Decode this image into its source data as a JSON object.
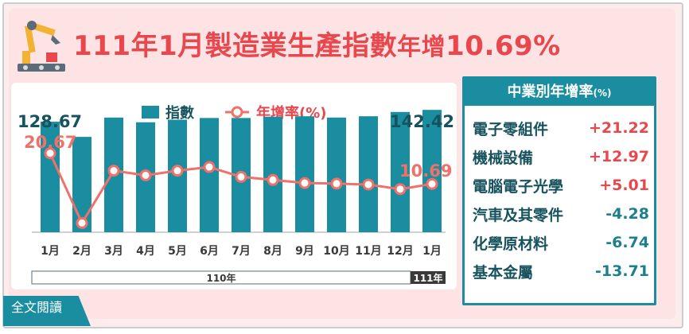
{
  "title": {
    "year_part": "111年1月製造業生產指數",
    "suffix_small": "年增",
    "suffix_value": "10.69%"
  },
  "legend": {
    "index_label": "指數",
    "yoy_label": "年增率(%)"
  },
  "colors": {
    "bar": "#1a8ea0",
    "line": "#f0706a",
    "title": "#e8474d"
  },
  "chart_data": {
    "type": "bar",
    "categories": [
      "1月",
      "2月",
      "3月",
      "4月",
      "5月",
      "6月",
      "7月",
      "8月",
      "9月",
      "10月",
      "11月",
      "12月",
      "1月"
    ],
    "year_groups": [
      {
        "label": "110年",
        "start": 0,
        "end": 11
      },
      {
        "label": "111年",
        "start": 12,
        "end": 12
      }
    ],
    "series": [
      {
        "name": "指數",
        "type": "bar",
        "values": [
          128.67,
          111.0,
          133.5,
          128.0,
          131.0,
          133.0,
          133.0,
          134.5,
          135.0,
          133.5,
          135.0,
          140.0,
          142.42
        ]
      },
      {
        "name": "年增率(%)",
        "type": "line",
        "values": [
          20.67,
          -2.0,
          15.0,
          13.5,
          15.0,
          16.2,
          13.0,
          12.0,
          11.0,
          10.8,
          10.5,
          9.0,
          10.69
        ]
      }
    ],
    "labels": {
      "bar_first": "128.67",
      "bar_last": "142.42",
      "line_first": "20.67",
      "line_last": "10.69"
    },
    "bar_range": [
      0,
      150
    ],
    "line_range": [
      -5,
      40
    ]
  },
  "industry": {
    "title": "中業別年增率",
    "unit": "(%)",
    "rows": [
      {
        "name": "電子零組件",
        "value": "+21.22"
      },
      {
        "name": "機械設備",
        "value": "+12.97"
      },
      {
        "name": "電腦電子光學",
        "value": "+5.01"
      },
      {
        "name": "汽車及其零件",
        "value": "-4.28"
      },
      {
        "name": "化學原材料",
        "value": "-6.74"
      },
      {
        "name": "基本金屬",
        "value": "-13.71"
      }
    ]
  },
  "footer": {
    "read_more": "全文閱讀"
  }
}
